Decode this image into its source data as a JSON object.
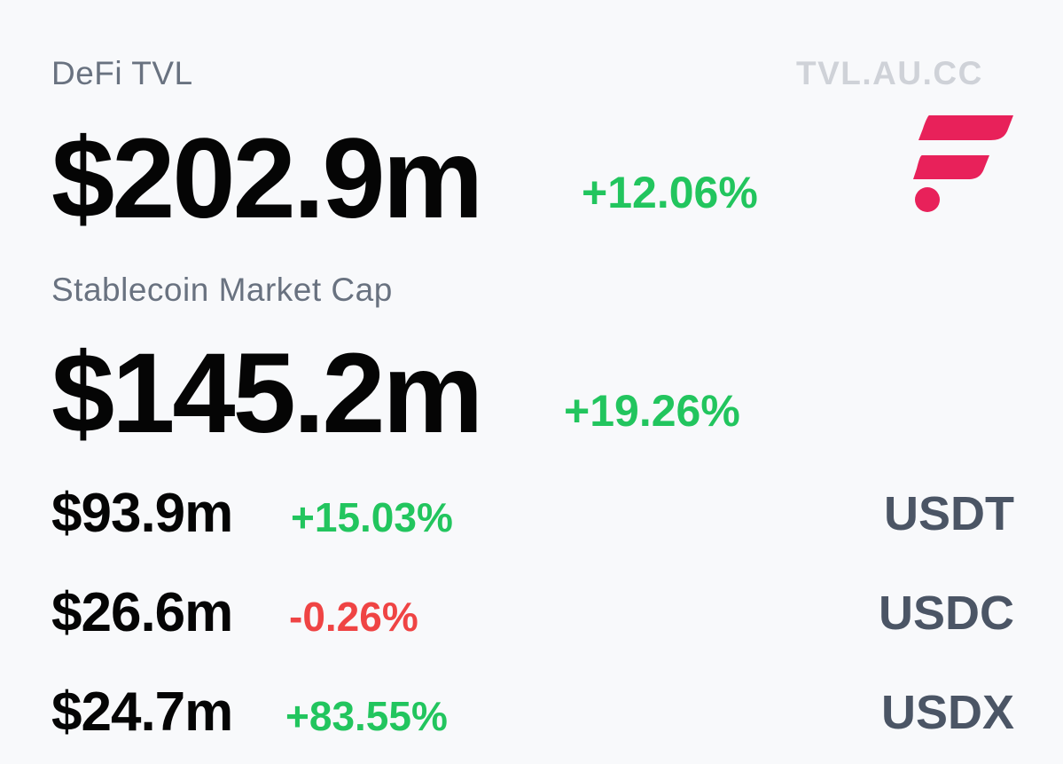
{
  "header": {
    "tvl_label": "DeFi TVL",
    "site": "TVL.AU.CC"
  },
  "tvl": {
    "value": "$202.9m",
    "change": "+12.06%"
  },
  "stablecoin": {
    "label": "Stablecoin Market Cap",
    "value": "$145.2m",
    "change": "+19.26%"
  },
  "coins": [
    {
      "value": "$93.9m",
      "change": "+15.03%",
      "symbol": "USDT"
    },
    {
      "value": "$26.6m",
      "change": "-0.26%",
      "symbol": "USDC"
    },
    {
      "value": "$24.7m",
      "change": "+83.55%",
      "symbol": "USDX"
    }
  ],
  "logo": {
    "icon": "brand-f-logo-icon",
    "color": "#e8215a"
  },
  "colors": {
    "positive": "#22c55e",
    "negative": "#ef4444",
    "label": "#697280",
    "symbol": "#4b5565"
  }
}
